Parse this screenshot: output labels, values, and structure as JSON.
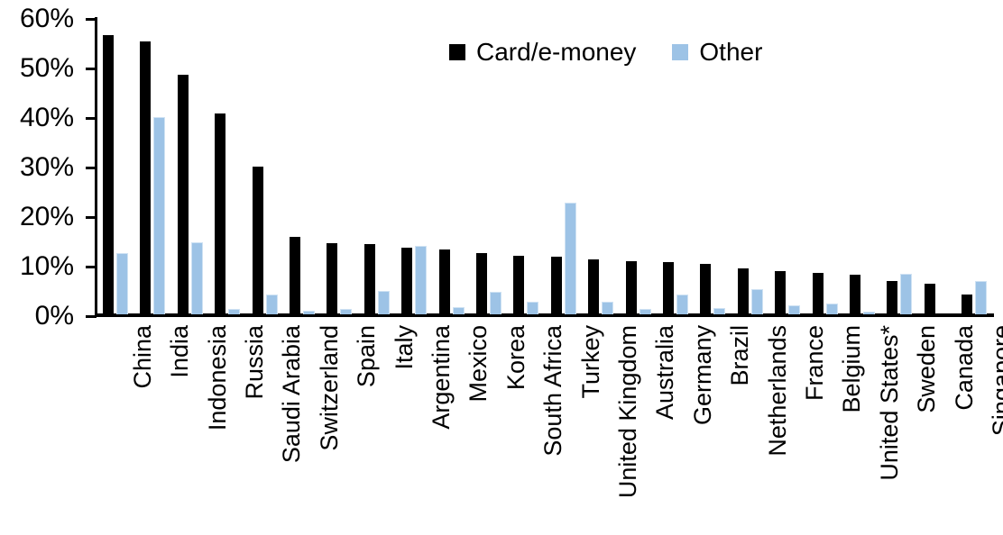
{
  "chart_data": {
    "type": "bar",
    "title": "",
    "xlabel": "",
    "ylabel": "",
    "ylim": [
      0,
      60
    ],
    "ytick_labels": [
      "0%",
      "10%",
      "20%",
      "30%",
      "40%",
      "50%",
      "60%"
    ],
    "grid": false,
    "legend_position": "top-center",
    "categories": [
      "China",
      "India",
      "Indonesia",
      "Russia",
      "Saudi Arabia",
      "Switzerland",
      "Spain",
      "Italy",
      "Argentina",
      "Mexico",
      "Korea",
      "South Africa",
      "Turkey",
      "United Kingdom",
      "Australia",
      "Germany",
      "Brazil",
      "Netherlands",
      "France",
      "Belgium",
      "United States*",
      "Sweden",
      "Canada",
      "Singapore"
    ],
    "series": [
      {
        "name": "Card/e-money",
        "color": "#000000",
        "values": [
          56.3,
          55.0,
          48.3,
          40.5,
          29.8,
          15.7,
          14.3,
          14.2,
          13.5,
          13.0,
          12.3,
          11.9,
          11.7,
          11.1,
          10.8,
          10.6,
          10.1,
          9.3,
          8.8,
          8.3,
          8.0,
          6.7,
          6.1,
          4.0
        ]
      },
      {
        "name": "Other",
        "color": "#9DC3E6",
        "values": [
          12.4,
          39.8,
          14.5,
          1.1,
          4.0,
          0.8,
          1.0,
          4.7,
          13.9,
          1.5,
          4.6,
          2.5,
          22.5,
          2.5,
          1.1,
          4.0,
          1.3,
          5.0,
          1.8,
          2.2,
          0.5,
          8.1,
          0.0,
          6.8
        ]
      }
    ]
  }
}
